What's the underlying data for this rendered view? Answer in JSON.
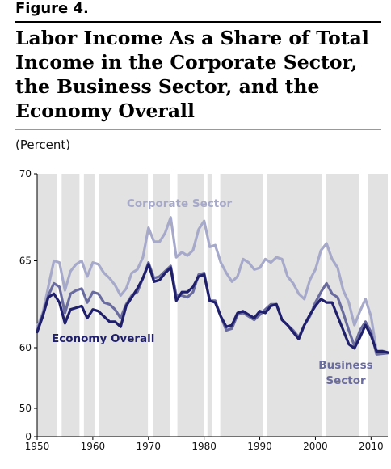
{
  "figure_label": "Figure 4.",
  "chart_data": {
    "type": "line",
    "title": "Labor Income As a Share of Total Income in the Corporate Sector, the Business Sector, and the Economy Overall",
    "ylabel": "(Percent)",
    "xlim": [
      1950,
      2013
    ],
    "ylim": [
      0,
      70
    ],
    "axis_break": {
      "from": 50,
      "to": 60
    },
    "y_ticks": [
      0,
      50,
      60,
      65,
      70
    ],
    "x_ticks": [
      1950,
      1960,
      1970,
      1980,
      1990,
      2000,
      2010
    ],
    "recession_shading": true,
    "expansion_periods": [
      [
        1950,
        1953.5
      ],
      [
        1954.4,
        1957.6
      ],
      [
        1958.4,
        1960.3
      ],
      [
        1961.1,
        1969.9
      ],
      [
        1970.9,
        1973.9
      ],
      [
        1975.2,
        1980.0
      ],
      [
        1980.6,
        1981.5
      ],
      [
        1982.9,
        1990.6
      ],
      [
        1991.3,
        2001.2
      ],
      [
        2001.9,
        2007.9
      ],
      [
        2009.5,
        2013
      ]
    ],
    "series": [
      {
        "name": "Corporate Sector",
        "color": "#a6a9c9",
        "x": [
          1950,
          1951,
          1952,
          1953,
          1954,
          1955,
          1956,
          1957,
          1958,
          1959,
          1960,
          1961,
          1962,
          1963,
          1964,
          1965,
          1966,
          1967,
          1968,
          1969,
          1970,
          1971,
          1972,
          1973,
          1974,
          1975,
          1976,
          1977,
          1978,
          1979,
          1980,
          1981,
          1982,
          1983,
          1984,
          1985,
          1986,
          1987,
          1988,
          1989,
          1990,
          1991,
          1992,
          1993,
          1994,
          1995,
          1996,
          1997,
          1998,
          1999,
          2000,
          2001,
          2002,
          2003,
          2004,
          2005,
          2006,
          2007,
          2008,
          2009,
          2010,
          2011,
          2012,
          2013
        ],
        "values": [
          61.2,
          62.0,
          63.5,
          65.0,
          64.9,
          63.3,
          64.4,
          64.8,
          65.0,
          64.1,
          64.9,
          64.8,
          64.3,
          64.0,
          63.6,
          63.0,
          63.4,
          64.3,
          64.5,
          65.2,
          66.9,
          66.1,
          66.1,
          66.6,
          67.5,
          65.2,
          65.5,
          65.3,
          65.6,
          66.8,
          67.3,
          65.8,
          65.9,
          64.9,
          64.3,
          63.8,
          64.1,
          65.1,
          64.9,
          64.5,
          64.6,
          65.1,
          64.9,
          65.2,
          65.1,
          64.1,
          63.7,
          63.1,
          62.8,
          63.9,
          64.5,
          65.6,
          66.0,
          65.1,
          64.6,
          63.3,
          62.6,
          61.3,
          62.1,
          62.8,
          61.8,
          59.4,
          59.5,
          59.2
        ]
      },
      {
        "name": "Business Sector",
        "color": "#6a6b9e",
        "x": [
          1950,
          1951,
          1952,
          1953,
          1954,
          1955,
          1956,
          1957,
          1958,
          1959,
          1960,
          1961,
          1962,
          1963,
          1964,
          1965,
          1966,
          1967,
          1968,
          1969,
          1970,
          1971,
          1972,
          1973,
          1974,
          1975,
          1976,
          1977,
          1978,
          1979,
          1980,
          1981,
          1982,
          1983,
          1984,
          1985,
          1986,
          1987,
          1988,
          1989,
          1990,
          1991,
          1992,
          1993,
          1994,
          1995,
          1996,
          1997,
          1998,
          1999,
          2000,
          2001,
          2002,
          2003,
          2004,
          2005,
          2006,
          2007,
          2008,
          2009,
          2010,
          2011,
          2012,
          2013
        ],
        "values": [
          61.0,
          61.9,
          63.0,
          63.7,
          63.5,
          62.0,
          63.1,
          63.3,
          63.4,
          62.6,
          63.2,
          63.1,
          62.6,
          62.5,
          62.2,
          61.7,
          62.5,
          63.0,
          63.2,
          64.0,
          64.9,
          64.0,
          64.1,
          64.4,
          64.7,
          63.0,
          63.0,
          62.9,
          63.2,
          64.2,
          64.3,
          62.7,
          62.7,
          61.8,
          61.0,
          61.1,
          61.9,
          62.0,
          61.8,
          61.6,
          61.9,
          62.2,
          62.5,
          62.5,
          61.6,
          61.3,
          61.0,
          60.6,
          61.3,
          61.8,
          62.6,
          63.2,
          63.7,
          63.1,
          62.9,
          62.0,
          61.0,
          60.1,
          61.0,
          61.5,
          60.9,
          58.9,
          59.0,
          59.1
        ]
      },
      {
        "name": "Economy Overall",
        "color": "#1f1f6b",
        "x": [
          1950,
          1951,
          1952,
          1953,
          1954,
          1955,
          1956,
          1957,
          1958,
          1959,
          1960,
          1961,
          1962,
          1963,
          1964,
          1965,
          1966,
          1967,
          1968,
          1969,
          1970,
          1971,
          1972,
          1973,
          1974,
          1975,
          1976,
          1977,
          1978,
          1979,
          1980,
          1981,
          1982,
          1983,
          1984,
          1985,
          1986,
          1987,
          1988,
          1989,
          1990,
          1991,
          1992,
          1993,
          1994,
          1995,
          1996,
          1997,
          1998,
          1999,
          2000,
          2001,
          2002,
          2003,
          2004,
          2005,
          2006,
          2007,
          2008,
          2009,
          2010,
          2011,
          2012,
          2013
        ],
        "values": [
          60.9,
          61.8,
          62.9,
          63.1,
          62.6,
          61.4,
          62.2,
          62.3,
          62.4,
          61.7,
          62.2,
          62.1,
          61.8,
          61.5,
          61.5,
          61.2,
          62.4,
          62.9,
          63.4,
          64.0,
          64.8,
          63.8,
          63.9,
          64.3,
          64.6,
          62.7,
          63.2,
          63.2,
          63.5,
          64.1,
          64.2,
          62.7,
          62.6,
          61.8,
          61.2,
          61.3,
          62.0,
          62.1,
          61.9,
          61.7,
          62.1,
          62.0,
          62.4,
          62.5,
          61.6,
          61.3,
          60.9,
          60.5,
          61.3,
          61.9,
          62.4,
          62.8,
          62.6,
          62.6,
          61.8,
          61.0,
          60.2,
          59.9,
          60.6,
          61.3,
          60.7,
          59.4,
          59.4,
          59.2
        ]
      }
    ],
    "annotations": [
      {
        "text": "Corporate Sector",
        "series": "Corporate Sector"
      },
      {
        "text": "Economy Overall",
        "series": "Economy Overall"
      },
      {
        "lines": [
          "Business",
          "Sector"
        ],
        "series": "Business Sector"
      }
    ]
  }
}
